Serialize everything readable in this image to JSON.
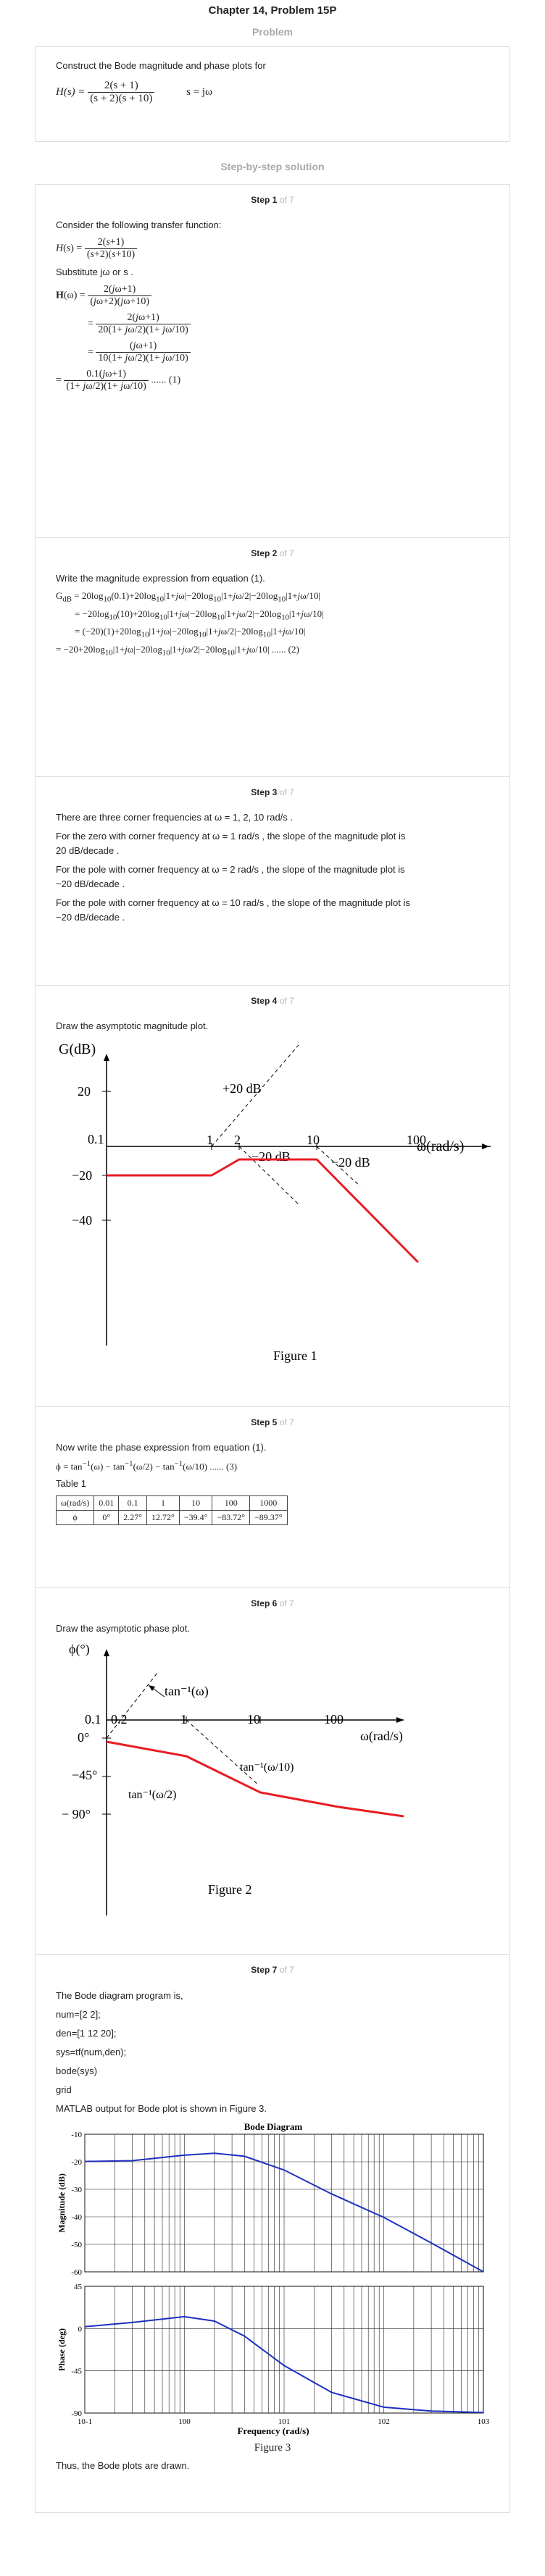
{
  "title": "Chapter 14, Problem 15P",
  "problem_head": "Problem",
  "problem_text": "Construct the Bode magnitude and phase plots for",
  "problem_H": "H(s) =",
  "problem_num": "2(s + 1)",
  "problem_den": "(s + 2)(s + 10)",
  "problem_s": "s = jω",
  "solution_head": "Step-by-step solution",
  "step_word": "Step",
  "of_word": "of 7",
  "steps": {
    "s1": {
      "n": "1",
      "intro": "Consider the following transfer function:",
      "sub": "Substitute  jω  or  s .",
      "tag": "...... (1)"
    },
    "s2": {
      "n": "2",
      "intro": "Write the magnitude expression from equation (1).",
      "tag": "...... (2)"
    },
    "s3": {
      "n": "3",
      "l1": "There are three corner frequencies at  ω = 1,  2,  10 rad/s .",
      "l2": "For the zero with corner frequency at  ω = 1 rad/s , the slope of the magnitude plot is",
      "l2b": "20 dB/decade .",
      "l3": "For the pole with corner frequency at  ω = 2 rad/s , the slope of the magnitude plot is",
      "l3b": "−20 dB/decade .",
      "l4": "For the pole with corner frequency at  ω = 10 rad/s , the slope of the magnitude plot is",
      "l4b": "−20 dB/decade ."
    },
    "s4": {
      "n": "4",
      "intro": "Draw the asymptotic magnitude plot.",
      "caption": "Figure 1"
    },
    "s5": {
      "n": "5",
      "intro": "Now write the phase expression from equation (1).",
      "tag": "...... (3)",
      "table_label": "Table 1"
    },
    "s6": {
      "n": "6",
      "intro": "Draw the asymptotic phase plot.",
      "caption": "Figure 2"
    },
    "s7": {
      "n": "7",
      "intro": "The Bode diagram program is,",
      "code": [
        "num=[2 2];",
        "den=[1 12 20];",
        "sys=tf(num,den);",
        "bode(sys)",
        "grid"
      ],
      "out": "MATLAB output for Bode plot is shown in Figure 3.",
      "caption": "Figure 3",
      "end": "Thus, the Bode plots are drawn."
    }
  },
  "table1": {
    "headers": [
      "ω(rad/s)",
      "0.01",
      "0.1",
      "1",
      "10",
      "100",
      "1000"
    ],
    "row": [
      "ϕ",
      "0°",
      "2.27°",
      "12.72°",
      "−39.4°",
      "−83.72°",
      "−89.37°"
    ]
  },
  "fig1": {
    "ylabel": "G(dB)",
    "xlabel": "ω(rad/s)",
    "yticks": [
      "20",
      "−20",
      "−40"
    ],
    "xticks": [
      "1",
      "2",
      "10",
      "100"
    ],
    "origin": "0.1",
    "ann1": "+20 dB",
    "ann2": "−20 dB",
    "ann3": "−20 dB"
  },
  "fig2": {
    "ylabel": "ϕ(°)",
    "xlabel": "ω(rad/s)",
    "yticks": [
      "0°",
      "−45°",
      "− 90°"
    ],
    "xticks": [
      "0.2",
      "1",
      "10",
      "100"
    ],
    "origin": "0.1",
    "ann1": "tan⁻¹(ω)",
    "ann2": "tan⁻¹(ω/10)",
    "ann3": "tan⁻¹(ω/2)"
  },
  "chart_data": {
    "type": "line",
    "title": "Bode Diagram",
    "xlabel": "Frequency  (rad/s)",
    "panels": [
      {
        "ylabel": "Magnitude (dB)",
        "ylim": [
          -60,
          -10
        ],
        "yticks": [
          "-10",
          "-20",
          "-30",
          "-40",
          "-50",
          "-60"
        ],
        "x": [
          0.1,
          0.3,
          1,
          2,
          4,
          10,
          30,
          100,
          300,
          1000
        ],
        "y": [
          -19.9,
          -19.6,
          -17.6,
          -16.9,
          -18,
          -23,
          -31.7,
          -40.2,
          -49.5,
          -60
        ]
      },
      {
        "ylabel": "Phase (deg)",
        "ylim": [
          -90,
          45
        ],
        "yticks": [
          "45",
          "0",
          "-45",
          "-90"
        ],
        "x": [
          0.1,
          0.3,
          1,
          2,
          4,
          10,
          30,
          100,
          300,
          1000
        ],
        "y": [
          2,
          6.5,
          12.7,
          8,
          -8,
          -39.4,
          -68,
          -83.7,
          -87.9,
          -89.4
        ]
      }
    ],
    "xticks": [
      "10-1",
      "100",
      "101",
      "102",
      "103"
    ],
    "grid": true
  }
}
